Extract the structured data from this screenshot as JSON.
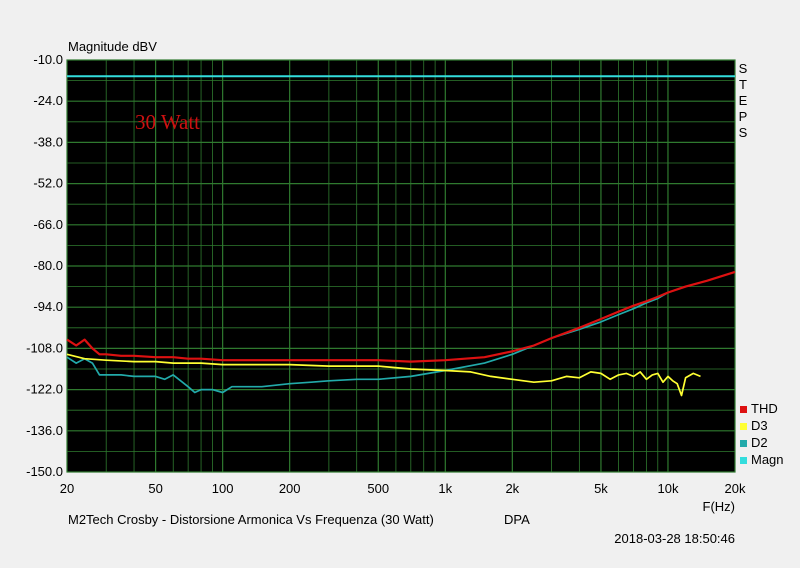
{
  "chart_data": {
    "type": "line",
    "title": "Magnitude dBV",
    "xlabel": "F(Hz)",
    "ylabel": "Magnitude dBV",
    "x_scale": "log",
    "xlim": [
      20,
      20000
    ],
    "ylim": [
      -150,
      -10
    ],
    "y_ticks": [
      "-10.0",
      "-24.0",
      "-38.0",
      "-52.0",
      "-66.0",
      "-80.0",
      "-94.0",
      "-108.0",
      "-122.0",
      "-136.0",
      "-150.0"
    ],
    "y_tick_values": [
      -10,
      -24,
      -38,
      -52,
      -66,
      -80,
      -94,
      -108,
      -122,
      -136,
      -150
    ],
    "x_ticks": [
      "20",
      "50",
      "100",
      "200",
      "500",
      "1k",
      "2k",
      "5k",
      "10k",
      "20k"
    ],
    "x_tick_values": [
      20,
      50,
      100,
      200,
      500,
      1000,
      2000,
      5000,
      10000,
      20000
    ],
    "grid": true,
    "background": "#000000",
    "grid_color": "#2f7a2f",
    "side_label": "STEPS",
    "annotation": {
      "text": "30 Watt",
      "color": "#cc1111"
    },
    "footer_left": "M2Tech Crosby - Distorsione Armonica Vs Frequenza (30 Watt)",
    "footer_mid": "DPA",
    "timestamp": "2018-03-28 18:50:46",
    "legend_position": "bottom-right",
    "series": [
      {
        "name": "THD",
        "color": "#dd1111",
        "x": [
          20,
          22,
          24,
          26,
          28,
          30,
          35,
          40,
          50,
          60,
          70,
          80,
          100,
          150,
          200,
          300,
          500,
          700,
          1000,
          1500,
          2000,
          2500,
          3000,
          4000,
          5000,
          6000,
          7000,
          8000,
          9000,
          10000,
          12000,
          15000,
          20000
        ],
        "y": [
          -105,
          -107,
          -105,
          -108,
          -110,
          -110,
          -110.5,
          -110.5,
          -111,
          -111,
          -111.5,
          -111.5,
          -112,
          -112,
          -112,
          -112,
          -112,
          -112.5,
          -112,
          -111,
          -109,
          -107,
          -104.5,
          -101,
          -98,
          -95.5,
          -93.5,
          -92,
          -90.5,
          -89,
          -87,
          -85,
          -82
        ]
      },
      {
        "name": "D3",
        "color": "#ffff33",
        "x": [
          20,
          24,
          30,
          40,
          50,
          60,
          80,
          100,
          150,
          200,
          300,
          500,
          700,
          1000,
          1300,
          1600,
          2000,
          2500,
          3000,
          3500,
          4000,
          4500,
          5000,
          5500,
          6000,
          6500,
          7000,
          7500,
          8000,
          8500,
          9000,
          9500,
          10000,
          10500,
          11000,
          11500,
          12000,
          13000,
          14000
        ],
        "y": [
          -110,
          -111.5,
          -112,
          -112.5,
          -112.5,
          -113,
          -113,
          -113.5,
          -113.5,
          -113.5,
          -114,
          -114,
          -115,
          -115.5,
          -116,
          -117.5,
          -118.5,
          -119.5,
          -119,
          -117.5,
          -118,
          -116,
          -116.5,
          -118.5,
          -117,
          -116.5,
          -117.5,
          -116,
          -118.5,
          -117,
          -116.5,
          -119.5,
          -117.5,
          -119,
          -120,
          -124,
          -118,
          -116.5,
          -117.5
        ]
      },
      {
        "name": "D2",
        "color": "#22aaaa",
        "x": [
          20,
          22,
          24,
          26,
          28,
          30,
          35,
          40,
          45,
          50,
          55,
          60,
          70,
          75,
          80,
          90,
          100,
          110,
          150,
          200,
          250,
          300,
          400,
          500,
          700,
          1000,
          1500,
          2000,
          2500,
          3000,
          4000,
          5000,
          6000,
          7000,
          8000,
          9000,
          10000,
          12000
        ],
        "y": [
          -111,
          -113,
          -111.5,
          -113,
          -117,
          -117,
          -117,
          -117.5,
          -117.5,
          -117.5,
          -118.5,
          -117,
          -121,
          -123,
          -122,
          -122,
          -123,
          -121,
          -121,
          -120,
          -119.5,
          -119,
          -118.5,
          -118.5,
          -117.5,
          -115.5,
          -113,
          -110,
          -107,
          -104.5,
          -101.5,
          -99,
          -96.5,
          -94.5,
          -92.5,
          -91,
          -89,
          -87
        ]
      },
      {
        "name": "Magn",
        "color": "#33dddd",
        "x": [
          20,
          20000
        ],
        "y": [
          -15.5,
          -15.5
        ]
      }
    ]
  }
}
